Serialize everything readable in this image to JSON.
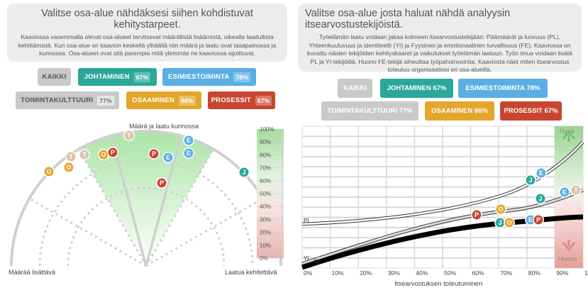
{
  "left": {
    "title": "Valitse osa-alue nähdäksesi siihen kohdistuvat kehitystarpeet.",
    "description": "Kaaviossa vasemmalla olevat osa-alueet tarvitsevat määrällistä lisäämistä, oikealla laadullista kehittämistä. Kun osa-alue on kaavion keskellä ylhäällä niin määrä ja laatu ovat tasapainossa ja kunnossa. Osa-alueet ovat sitä parempia mitä ylemmäs ne kaaviossa sijoittuvat.",
    "buttons": [
      {
        "label": "KAIKKI",
        "pct": ""
      },
      {
        "label": "JOHTAMINEN",
        "pct": "67%"
      },
      {
        "label": "ESIMIESTOIMINTA",
        "pct": "78%"
      },
      {
        "label": "TOIMINTAKULTTUURI",
        "pct": "77%"
      },
      {
        "label": "OSAAMINEN",
        "pct": "66%"
      },
      {
        "label": "PROSESSIT",
        "pct": "67%"
      }
    ],
    "top_label": "Määrä ja laatu kunnossa",
    "left_label": "Määrää lisättävä",
    "right_label": "Laatua kehitettävä",
    "scale": [
      "100%",
      "90%",
      "80%",
      "70%",
      "60%",
      "50%",
      "40%",
      "30%",
      "20%",
      "10%",
      "0%"
    ]
  },
  "right": {
    "title": "Valitse osa-alue josta haluat nähdä analyysin itsearvostustekijöistä.",
    "description": "Työelämän laatu voidaan jakaa kolmeen itsearvostustekijään: Päämäärät ja luovuus (PL), Yhteenkuuluvuus ja identiteetti (YI) ja Fyysinen ja emotionaalinen turvallisuus (FE). Kaaviossa on kuvattu näiden tekijöiden kehityskaaret ja vaikutukset työelämän laatuun. Työn imua voidaan lisätä PL ja YI-tekijöillä. Huono FE-tekijä aiheuttaa työpahoinvointia. Kaaviosta näet miten itsearvostus toteutuu organisaatiosi eri osa-alueilla.",
    "buttons": [
      "KAIKKI",
      "JOHTAMINEN 67%",
      "ESIMIESTOIMINTA 78%",
      "TOIMINTAKULTTUURI 77%",
      "OSAAMINEN 66%",
      "PROSESSIT 67%"
    ],
    "hyva": "Hyvä",
    "huono": "Huono",
    "xticks": [
      "0%",
      "10%",
      "20%",
      "30%",
      "40%",
      "50%",
      "60%",
      "70%",
      "80%",
      "90%",
      "100%"
    ],
    "xlabel": "Itsearvostuksen toteutuminen",
    "curve_labels": {
      "pl": "PL",
      "yi": "YI",
      "fe": "FE"
    }
  },
  "colors": {
    "teal": "#2aa89a",
    "blue": "#5aaee3",
    "gray": "#c9c9c9",
    "yellow": "#e3a52b",
    "red": "#c8452f",
    "beige": "#dcc3a8"
  },
  "markers_left": [
    {
      "letter": "T",
      "color": "#dcc3a8"
    },
    {
      "letter": "T",
      "color": "#dcc3a8"
    },
    {
      "letter": "T",
      "color": "#dcc3a8"
    },
    {
      "letter": "O",
      "color": "#e3a52b"
    },
    {
      "letter": "O",
      "color": "#e3a52b"
    },
    {
      "letter": "O",
      "color": "#e3a52b"
    },
    {
      "letter": "P",
      "color": "#c8452f"
    },
    {
      "letter": "P",
      "color": "#c8452f"
    },
    {
      "letter": "P",
      "color": "#c8452f"
    },
    {
      "letter": "E",
      "color": "#5aaee3"
    },
    {
      "letter": "E",
      "color": "#5aaee3"
    },
    {
      "letter": "E",
      "color": "#5aaee3"
    },
    {
      "letter": "J",
      "color": "#2aa89a"
    }
  ],
  "markers_right": [
    {
      "letter": "J",
      "color": "#2aa89a"
    },
    {
      "letter": "E",
      "color": "#5aaee3"
    },
    {
      "letter": "J",
      "color": "#2aa89a"
    },
    {
      "letter": "E",
      "color": "#5aaee3"
    },
    {
      "letter": "T",
      "color": "#dcc3a8"
    },
    {
      "letter": "P",
      "color": "#c8452f"
    },
    {
      "letter": "O",
      "color": "#e3a52b"
    },
    {
      "letter": "J",
      "color": "#2aa89a"
    },
    {
      "letter": "O",
      "color": "#e3a52b"
    },
    {
      "letter": "E",
      "color": "#5aaee3"
    },
    {
      "letter": "P",
      "color": "#c8452f"
    }
  ]
}
